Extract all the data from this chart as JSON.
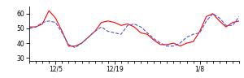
{
  "red_y": [
    51,
    51,
    53,
    62,
    57,
    48,
    38,
    38,
    40,
    44,
    48,
    54,
    55,
    54,
    52,
    53,
    51,
    47,
    46,
    42,
    39,
    39,
    40,
    38,
    40,
    41,
    48,
    58,
    60,
    55,
    51,
    54,
    55
  ],
  "blue_y": [
    50,
    51,
    54,
    55,
    54,
    47,
    39,
    37,
    40,
    44,
    48,
    51,
    48,
    47,
    46,
    52,
    53,
    51,
    47,
    43,
    40,
    38,
    38,
    40,
    44,
    46,
    47,
    55,
    60,
    57,
    52,
    52,
    58
  ],
  "n": 33,
  "ylim": [
    28,
    65
  ],
  "yticks": [
    30,
    40,
    50,
    60
  ],
  "xtick_positions": [
    4,
    13,
    26
  ],
  "xtick_labels": [
    "12/5",
    "12/19",
    "1/8"
  ],
  "minor_xtick_positions": [
    0,
    1,
    2,
    3,
    4,
    5,
    6,
    7,
    8,
    9,
    10,
    11,
    12,
    13,
    14,
    15,
    16,
    17,
    18,
    19,
    20,
    21,
    22,
    23,
    24,
    25,
    26,
    27,
    28,
    29,
    30,
    31,
    32
  ],
  "red_color": "#ff0000",
  "blue_color": "#5555cc",
  "bg_color": "#ffffff",
  "linewidth": 0.8
}
